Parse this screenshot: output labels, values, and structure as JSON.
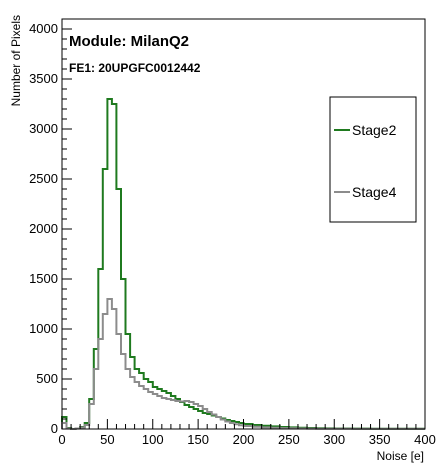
{
  "chart_data": {
    "type": "line",
    "title": "",
    "xlabel": "Noise [e]",
    "ylabel": "Number of Pixels",
    "xlim": [
      0,
      400
    ],
    "ylim": [
      0,
      4100
    ],
    "x_ticks": [
      0,
      50,
      100,
      150,
      200,
      250,
      300,
      350,
      400
    ],
    "y_ticks": [
      0,
      500,
      1000,
      1500,
      2000,
      2500,
      3000,
      3500,
      4000
    ],
    "grid": false,
    "legend_position": "right",
    "annotations": [
      "Module: MilanQ2",
      "FE1: 20UPGFC0012442"
    ],
    "bin_width": 5,
    "series": [
      {
        "name": "Stage2",
        "color": "#1f7a1f",
        "bin_starts": [
          0,
          5,
          10,
          15,
          20,
          25,
          30,
          35,
          40,
          45,
          50,
          55,
          60,
          65,
          70,
          75,
          80,
          85,
          90,
          95,
          100,
          105,
          110,
          115,
          120,
          125,
          130,
          135,
          140,
          145,
          150,
          155,
          160,
          165,
          170,
          175,
          180,
          185,
          190,
          195,
          200,
          210,
          220,
          230,
          240,
          250,
          260,
          270,
          280,
          290,
          300,
          320,
          340,
          360,
          380
        ],
        "values": [
          120,
          10,
          0,
          5,
          20,
          60,
          300,
          800,
          1600,
          2600,
          3300,
          3250,
          2400,
          1500,
          950,
          720,
          600,
          560,
          500,
          470,
          420,
          400,
          380,
          360,
          330,
          300,
          270,
          240,
          220,
          200,
          180,
          160,
          150,
          135,
          120,
          105,
          90,
          80,
          70,
          60,
          50,
          40,
          32,
          26,
          20,
          16,
          12,
          10,
          8,
          6,
          5,
          4,
          3,
          3,
          2
        ]
      },
      {
        "name": "Stage4",
        "color": "#8c8c8c",
        "bin_starts": [
          0,
          5,
          10,
          15,
          20,
          25,
          30,
          35,
          40,
          45,
          50,
          55,
          60,
          65,
          70,
          75,
          80,
          85,
          90,
          95,
          100,
          105,
          110,
          115,
          120,
          125,
          130,
          135,
          140,
          145,
          150,
          155,
          160,
          165,
          170,
          175,
          180,
          185,
          190,
          195,
          200,
          210,
          220,
          230,
          240,
          250,
          260,
          270,
          280,
          290,
          300,
          320,
          340,
          360,
          380
        ],
        "values": [
          60,
          5,
          0,
          5,
          15,
          40,
          250,
          600,
          900,
          1150,
          1300,
          1200,
          950,
          750,
          600,
          520,
          470,
          430,
          400,
          370,
          350,
          330,
          310,
          300,
          290,
          280,
          275,
          280,
          270,
          250,
          230,
          200,
          170,
          145,
          120,
          95,
          75,
          60,
          48,
          38,
          30,
          22,
          16,
          12,
          9,
          7,
          5,
          4,
          3,
          2,
          2,
          1,
          1,
          1,
          1
        ]
      }
    ]
  }
}
